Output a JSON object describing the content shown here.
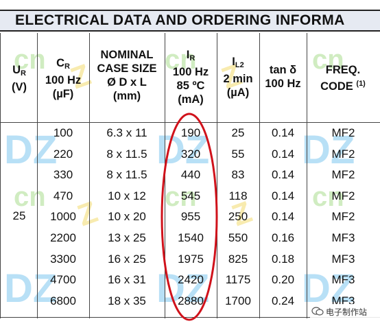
{
  "title": "ELECTRICAL DATA AND ORDERING INFORMA",
  "headers": {
    "ur": {
      "sym": "U",
      "sub": "R",
      "unit": "(V)"
    },
    "cr": {
      "sym": "C",
      "sub": "R",
      "line2": "100 Hz",
      "unit": "(µF)"
    },
    "case": {
      "line1": "NOMINAL",
      "line2": "CASE SIZE",
      "line3": "Ø D x L",
      "unit": "(mm)"
    },
    "ir": {
      "sym": "I",
      "sub": "R",
      "line2": "100 Hz",
      "line3": "85 ºC",
      "unit": "(mA)"
    },
    "il2": {
      "sym": "I",
      "sub": "L2",
      "line2": "2 min",
      "unit": "(µA)"
    },
    "tan": {
      "line1": "tan δ",
      "line2": "100 Hz"
    },
    "freq": {
      "line1": "FREQ.",
      "line2": "CODE",
      "note": "(1)"
    }
  },
  "voltage": "25",
  "rows": [
    {
      "cr": "100",
      "case": "6.3 x 11",
      "ir": "190",
      "il2": "25",
      "tan": "0.14",
      "freq": "MF2"
    },
    {
      "cr": "220",
      "case": "8 x 11.5",
      "ir": "320",
      "il2": "55",
      "tan": "0.14",
      "freq": "MF2"
    },
    {
      "cr": "330",
      "case": "8 x 11.5",
      "ir": "440",
      "il2": "83",
      "tan": "0.14",
      "freq": "MF2"
    },
    {
      "cr": "470",
      "case": "10 x 12",
      "ir": "545",
      "il2": "118",
      "tan": "0.14",
      "freq": "MF2"
    },
    {
      "cr": "1000",
      "case": "10 x 20",
      "ir": "955",
      "il2": "250",
      "tan": "0.14",
      "freq": "MF2"
    },
    {
      "cr": "2200",
      "case": "13 x 25",
      "ir": "1540",
      "il2": "550",
      "tan": "0.16",
      "freq": "MF3"
    },
    {
      "cr": "3300",
      "case": "16 x 25",
      "ir": "1975",
      "il2": "825",
      "tan": "0.18",
      "freq": "MF3"
    },
    {
      "cr": "4700",
      "case": "16 x 31",
      "ir": "2420",
      "il2": "1175",
      "tan": "0.20",
      "freq": "MF3"
    },
    {
      "cr": "6800",
      "case": "18 x 35",
      "ir": "2880",
      "il2": "1700",
      "tan": "0.24",
      "freq": "MF3"
    }
  ],
  "watermark_text": "DZ",
  "logo_text": "电子制作站",
  "colors": {
    "title_bg": "#e6eaf2",
    "highlight_ring": "#d0121b",
    "watermark_blue": "#7fc6ee",
    "watermark_yellow": "#f3da6e",
    "watermark_green": "#a9dd8f"
  }
}
